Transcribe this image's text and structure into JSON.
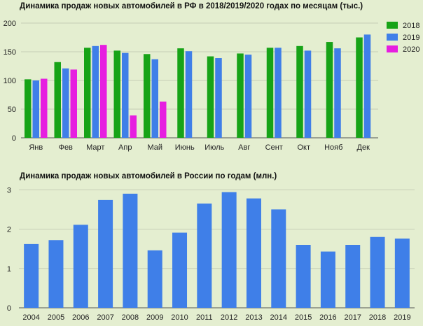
{
  "colors": {
    "2018": "#17a317",
    "2019": "#3f7fe8",
    "2020": "#e61ee0",
    "grid": "#c6ceb6",
    "axis": "#555555"
  },
  "chart_data": [
    {
      "type": "bar",
      "title": "Динамика продаж новых автомобилей в РФ в 2018/2019/2020 годах по месяцам (тыс.)",
      "categories": [
        "Янв",
        "Фев",
        "Март",
        "Апр",
        "Май",
        "Июнь",
        "Июль",
        "Авг",
        "Сент",
        "Окт",
        "Нояб",
        "Дек"
      ],
      "series": [
        {
          "name": "2018",
          "values": [
            102,
            132,
            157,
            152,
            146,
            156,
            142,
            147,
            157,
            160,
            167,
            175
          ]
        },
        {
          "name": "2019",
          "values": [
            100,
            121,
            160,
            148,
            137,
            151,
            139,
            145,
            157,
            152,
            156,
            180
          ]
        },
        {
          "name": "2020",
          "values": [
            103,
            119,
            162,
            39,
            63,
            null,
            null,
            null,
            null,
            null,
            null,
            null
          ]
        }
      ],
      "ylim": [
        0,
        200
      ],
      "yticks": [
        0,
        50,
        100,
        150,
        200
      ],
      "grid": true,
      "legend": "right"
    },
    {
      "type": "bar",
      "title": "Динамика продаж новых автомобилей в России по годам (млн.)",
      "categories": [
        "2004",
        "2005",
        "2006",
        "2007",
        "2008",
        "2009",
        "2010",
        "2011",
        "2012",
        "2013",
        "2014",
        "2015",
        "2016",
        "2017",
        "2018",
        "2019"
      ],
      "values": [
        1.62,
        1.72,
        2.11,
        2.74,
        2.9,
        1.46,
        1.91,
        2.65,
        2.94,
        2.78,
        2.5,
        1.6,
        1.43,
        1.6,
        1.8,
        1.76
      ],
      "ylim": [
        0,
        3.2
      ],
      "yticks": [
        0,
        1,
        2,
        3
      ],
      "grid": true
    }
  ]
}
